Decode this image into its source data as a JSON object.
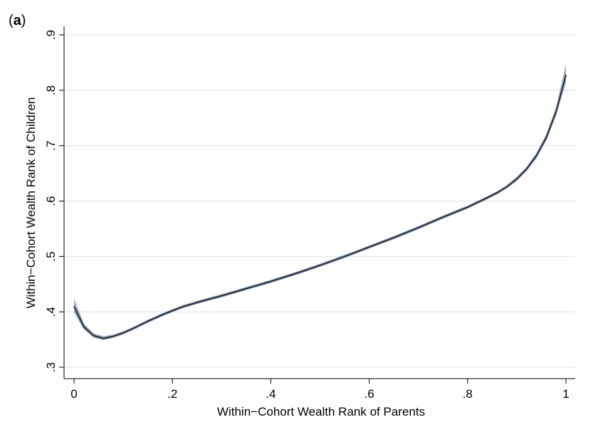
{
  "panel": {
    "open": "(",
    "letter": "a",
    "close": ")"
  },
  "chart_data": {
    "type": "line",
    "title": "",
    "xlabel": "Within−Cohort Wealth Rank of Parents",
    "ylabel": "Within−Cohort Wealth Rank of Children",
    "xlim": [
      0,
      1
    ],
    "ylim": [
      0.3,
      0.9
    ],
    "grid": true,
    "xticks": [
      {
        "v": 0,
        "label": "0"
      },
      {
        "v": 0.2,
        "label": ".2"
      },
      {
        "v": 0.4,
        "label": ".4"
      },
      {
        "v": 0.6,
        "label": ".6"
      },
      {
        "v": 0.8,
        "label": ".8"
      },
      {
        "v": 1,
        "label": "1"
      }
    ],
    "yticks": [
      {
        "v": 0.3,
        "label": ".3"
      },
      {
        "v": 0.4,
        "label": ".4"
      },
      {
        "v": 0.5,
        "label": ".5"
      },
      {
        "v": 0.6,
        "label": ".6"
      },
      {
        "v": 0.7,
        "label": ".7"
      },
      {
        "v": 0.8,
        "label": ".8"
      },
      {
        "v": 0.9,
        "label": ".9"
      }
    ],
    "line_color": "#1a2e44",
    "band_color": "#9aa3ab",
    "series": [
      {
        "x": [
          0,
          0.02,
          0.04,
          0.06,
          0.08,
          0.1,
          0.12,
          0.15,
          0.18,
          0.2,
          0.22,
          0.25,
          0.3,
          0.35,
          0.4,
          0.45,
          0.5,
          0.55,
          0.6,
          0.65,
          0.7,
          0.75,
          0.8,
          0.84,
          0.86,
          0.88,
          0.9,
          0.92,
          0.94,
          0.96,
          0.98,
          1.0
        ],
        "y": [
          0.41,
          0.373,
          0.357,
          0.352,
          0.356,
          0.362,
          0.37,
          0.383,
          0.395,
          0.402,
          0.409,
          0.417,
          0.429,
          0.442,
          0.455,
          0.469,
          0.484,
          0.5,
          0.517,
          0.534,
          0.552,
          0.571,
          0.589,
          0.606,
          0.615,
          0.626,
          0.64,
          0.658,
          0.682,
          0.715,
          0.762,
          0.828
        ],
        "lower": [
          0.398,
          0.368,
          0.353,
          0.349,
          0.353,
          0.359,
          0.367,
          0.38,
          0.392,
          0.399,
          0.406,
          0.414,
          0.426,
          0.439,
          0.452,
          0.466,
          0.481,
          0.497,
          0.514,
          0.531,
          0.549,
          0.568,
          0.586,
          0.603,
          0.612,
          0.623,
          0.636,
          0.654,
          0.677,
          0.709,
          0.754,
          0.813
        ],
        "upper": [
          0.424,
          0.379,
          0.361,
          0.356,
          0.359,
          0.365,
          0.373,
          0.386,
          0.398,
          0.405,
          0.412,
          0.42,
          0.432,
          0.445,
          0.458,
          0.472,
          0.487,
          0.503,
          0.52,
          0.537,
          0.555,
          0.574,
          0.592,
          0.609,
          0.618,
          0.629,
          0.644,
          0.662,
          0.687,
          0.721,
          0.77,
          0.848
        ]
      }
    ]
  }
}
